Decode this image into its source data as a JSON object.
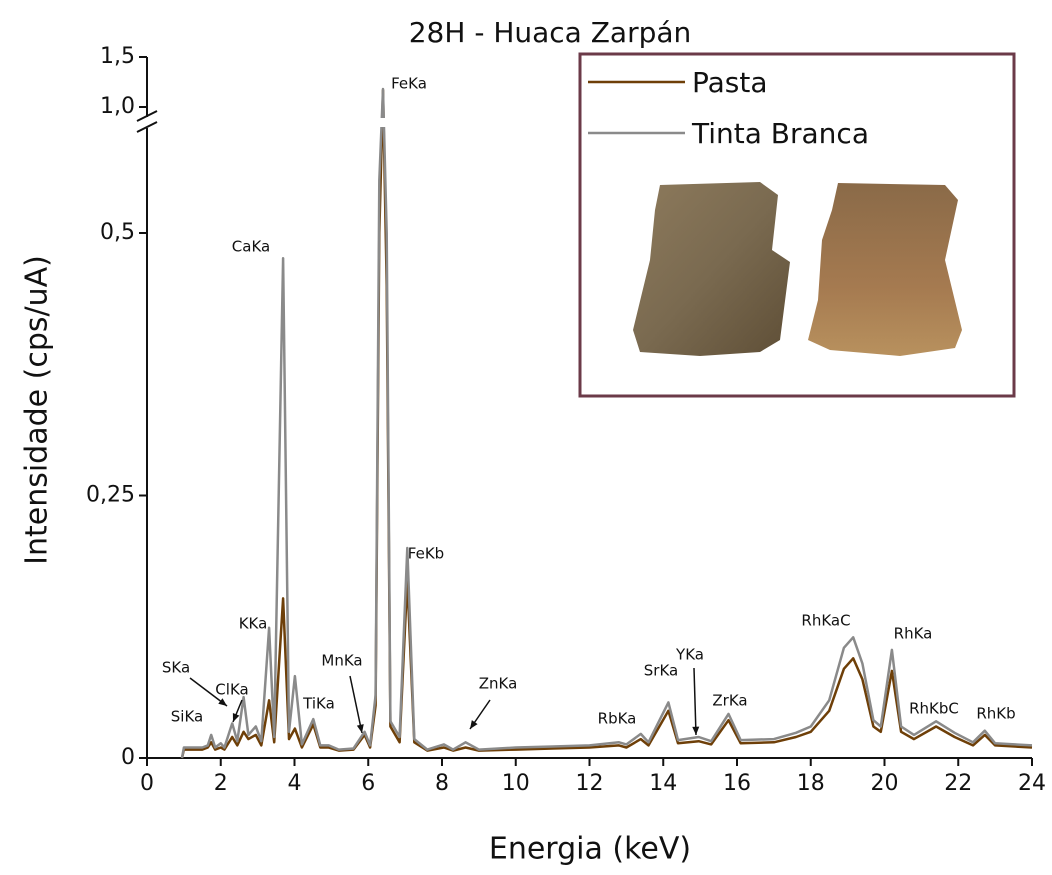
{
  "chart_data": {
    "type": "line",
    "title": "28H - Huaca Zarpán",
    "xlabel": "Energia (keV)",
    "ylabel": "Intensidade (cps/uA)",
    "xlim": [
      0,
      24
    ],
    "xticks": [
      0,
      2,
      4,
      6,
      8,
      10,
      12,
      14,
      16,
      18,
      20,
      22,
      24
    ],
    "ylim": [
      0,
      1.5
    ],
    "ybreak": [
      0.6,
      0.9
    ],
    "yticks": [
      0,
      {
        "value": 0.25,
        "label": "0,25"
      },
      {
        "value": 0.5,
        "label": "0,5"
      },
      {
        "value": 1.0,
        "label": "1,0"
      },
      {
        "value": 1.5,
        "label": "1,5"
      }
    ],
    "x": [
      0.95,
      1.0,
      1.5,
      1.65,
      1.74,
      1.85,
      2.0,
      2.1,
      2.31,
      2.45,
      2.62,
      2.75,
      2.95,
      3.1,
      3.31,
      3.45,
      3.69,
      3.85,
      4.01,
      4.2,
      4.51,
      4.7,
      4.93,
      5.2,
      5.6,
      5.9,
      6.05,
      6.2,
      6.3,
      6.4,
      6.5,
      6.6,
      6.85,
      7.06,
      7.25,
      7.6,
      8.05,
      8.3,
      8.64,
      9.0,
      10,
      11,
      12,
      12.8,
      13.0,
      13.39,
      13.6,
      14.14,
      14.4,
      14.96,
      15.3,
      15.77,
      16.1,
      17,
      17.6,
      18.0,
      18.5,
      18.9,
      19.15,
      19.4,
      19.7,
      19.9,
      20.2,
      20.45,
      20.8,
      21.4,
      21.9,
      22.4,
      22.72,
      23.0,
      24
    ],
    "series": [
      {
        "name": "Pasta",
        "color": "#6e3f08",
        "values": [
          0,
          0.008,
          0.008,
          0.01,
          0.015,
          0.008,
          0.01,
          0.008,
          0.02,
          0.012,
          0.025,
          0.018,
          0.022,
          0.012,
          0.055,
          0.015,
          0.152,
          0.018,
          0.028,
          0.01,
          0.032,
          0.01,
          0.01,
          0.007,
          0.008,
          0.022,
          0.01,
          0.05,
          0.5,
          1.17,
          0.45,
          0.03,
          0.015,
          0.17,
          0.015,
          0.007,
          0.01,
          0.007,
          0.01,
          0.007,
          0.008,
          0.009,
          0.01,
          0.012,
          0.01,
          0.018,
          0.012,
          0.045,
          0.014,
          0.016,
          0.013,
          0.036,
          0.014,
          0.015,
          0.02,
          0.025,
          0.045,
          0.085,
          0.095,
          0.075,
          0.03,
          0.025,
          0.083,
          0.025,
          0.018,
          0.03,
          0.02,
          0.012,
          0.022,
          0.012,
          0.01
        ]
      },
      {
        "name": "Tinta Branca",
        "color": "#8a8a8a",
        "values": [
          0,
          0.01,
          0.01,
          0.012,
          0.022,
          0.01,
          0.014,
          0.01,
          0.033,
          0.016,
          0.058,
          0.022,
          0.03,
          0.016,
          0.124,
          0.02,
          0.476,
          0.025,
          0.078,
          0.013,
          0.037,
          0.012,
          0.012,
          0.008,
          0.009,
          0.025,
          0.012,
          0.06,
          0.55,
          1.18,
          0.5,
          0.035,
          0.02,
          0.2,
          0.018,
          0.008,
          0.013,
          0.008,
          0.015,
          0.008,
          0.01,
          0.011,
          0.012,
          0.015,
          0.013,
          0.023,
          0.015,
          0.053,
          0.017,
          0.02,
          0.016,
          0.042,
          0.017,
          0.018,
          0.024,
          0.03,
          0.055,
          0.105,
          0.115,
          0.09,
          0.036,
          0.03,
          0.103,
          0.03,
          0.022,
          0.035,
          0.024,
          0.015,
          0.026,
          0.014,
          0.012
        ]
      }
    ],
    "annotations": [
      "SiKa",
      "SKa",
      "ClKa",
      "KKa",
      "CaKa",
      "TiKa",
      "MnKa",
      "FeKa",
      "FeKb",
      "ZnKa",
      "RbKa",
      "SrKa",
      "YKa",
      "ZrKa",
      "RhKaC",
      "RhKa",
      "RhKbC",
      "RhKb"
    ],
    "legend": "upper right"
  }
}
